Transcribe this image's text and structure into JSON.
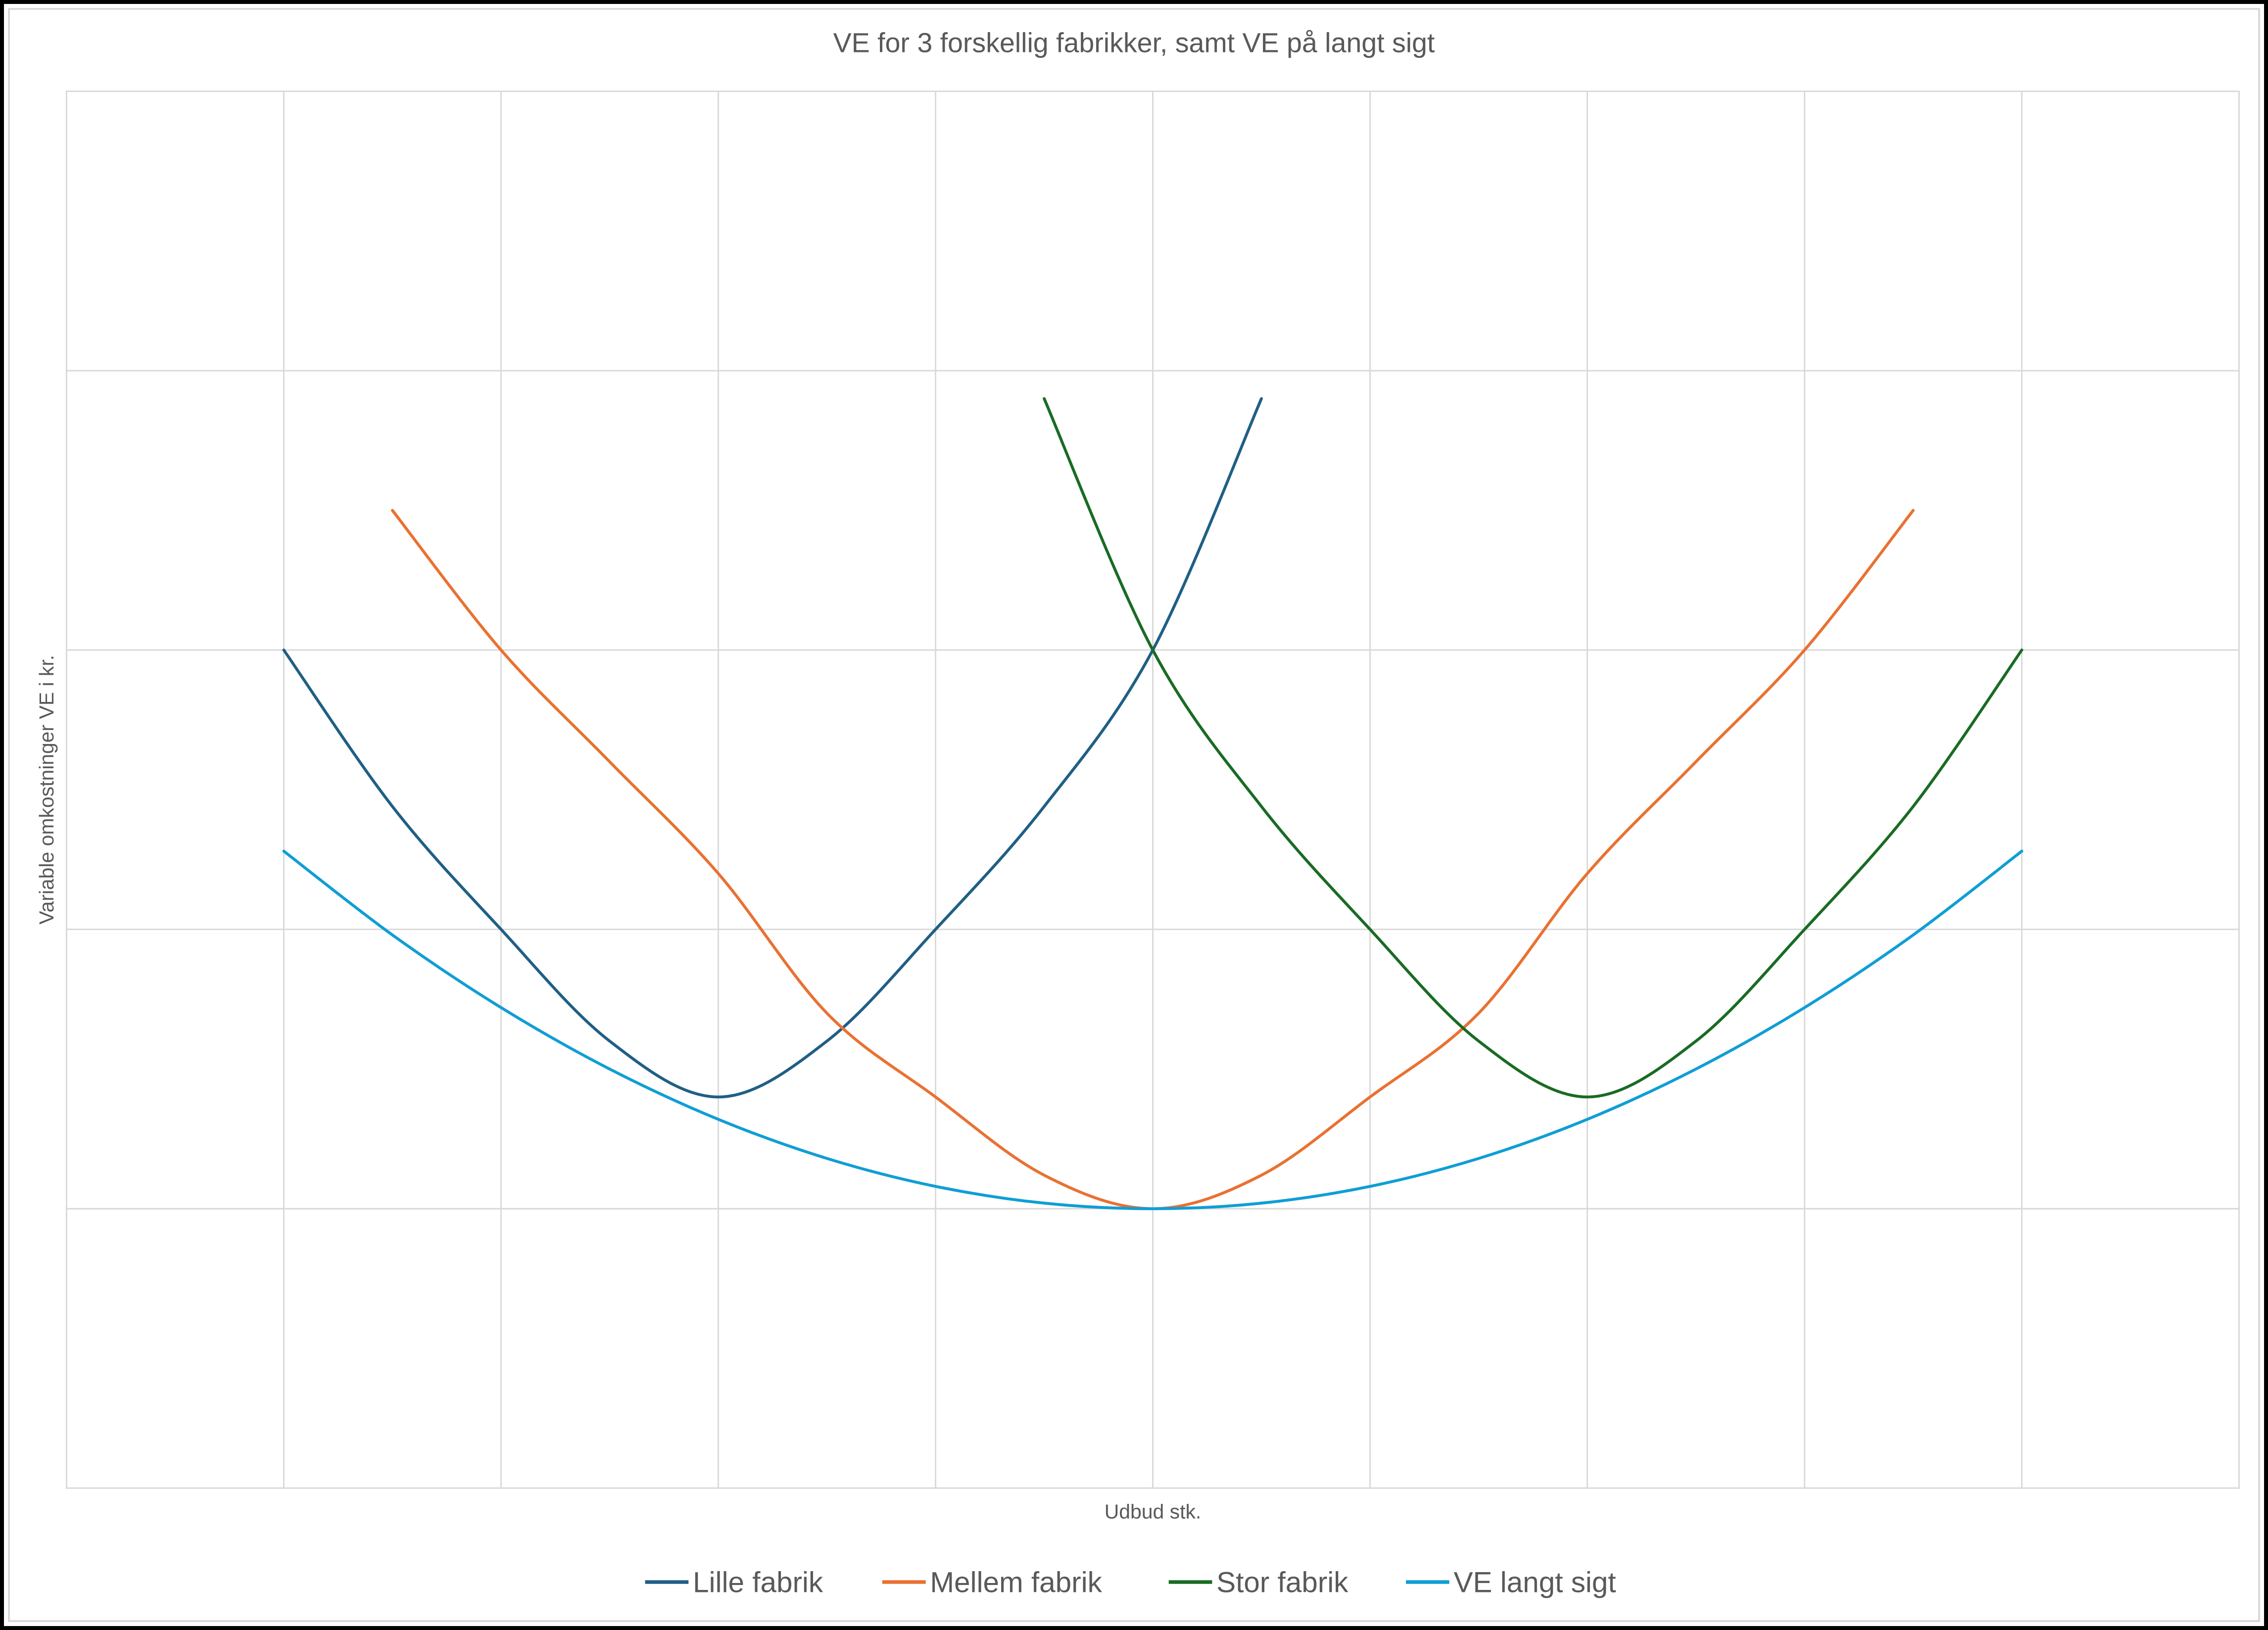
{
  "chart_data": {
    "type": "line",
    "title": "VE for  3 forskellig fabrikker, samt VE på langt sigt",
    "xlabel": "Udbud stk.",
    "ylabel": "Variable omkostninger VE i kr.",
    "xlim": [
      0,
      10
    ],
    "ylim": [
      0,
      5
    ],
    "x_gridlines": [
      1,
      2,
      3,
      4,
      5,
      6,
      7,
      8,
      9
    ],
    "y_gridlines": [
      1,
      2,
      3,
      4
    ],
    "tick_labels_visible": false,
    "grid": true,
    "legend_position": "bottom",
    "series": [
      {
        "name": "Lille fabrik",
        "color": "#1F5F85",
        "x": [
          1,
          1.5,
          2,
          2.5,
          3,
          3.5,
          4,
          4.5,
          5,
          5.5
        ],
        "y": [
          3.0,
          2.44,
          2.0,
          1.6,
          1.4,
          1.6,
          2.0,
          2.44,
          3.0,
          3.9
        ]
      },
      {
        "name": "Mellem fabrik",
        "color": "#E97132",
        "x": [
          1.5,
          2,
          2.5,
          3,
          3.5,
          4,
          4.5,
          5,
          5.5,
          6,
          6.5,
          7,
          7.5,
          8,
          8.5
        ],
        "y": [
          3.5,
          3.0,
          2.6,
          2.2,
          1.7,
          1.4,
          1.12,
          1.0,
          1.12,
          1.4,
          1.7,
          2.2,
          2.6,
          3.0,
          3.5
        ]
      },
      {
        "name": "Stor fabrik",
        "color": "#196B24",
        "x": [
          4.5,
          5,
          5.5,
          6,
          6.5,
          7,
          7.5,
          8,
          8.5,
          9
        ],
        "y": [
          3.9,
          3.0,
          2.44,
          2.0,
          1.6,
          1.4,
          1.6,
          2.0,
          2.44,
          3.0
        ]
      },
      {
        "name": "VE langt sigt",
        "color": "#0F9ED5",
        "x": [
          1,
          1.5,
          2,
          2.5,
          3,
          3.5,
          4,
          4.5,
          5,
          5.5,
          6,
          6.5,
          7,
          7.5,
          8,
          8.5,
          9
        ],
        "y": [
          2.28,
          1.98,
          1.72,
          1.5,
          1.32,
          1.18,
          1.08,
          1.02,
          1.0,
          1.02,
          1.08,
          1.18,
          1.32,
          1.5,
          1.72,
          1.98,
          2.28
        ]
      }
    ]
  }
}
